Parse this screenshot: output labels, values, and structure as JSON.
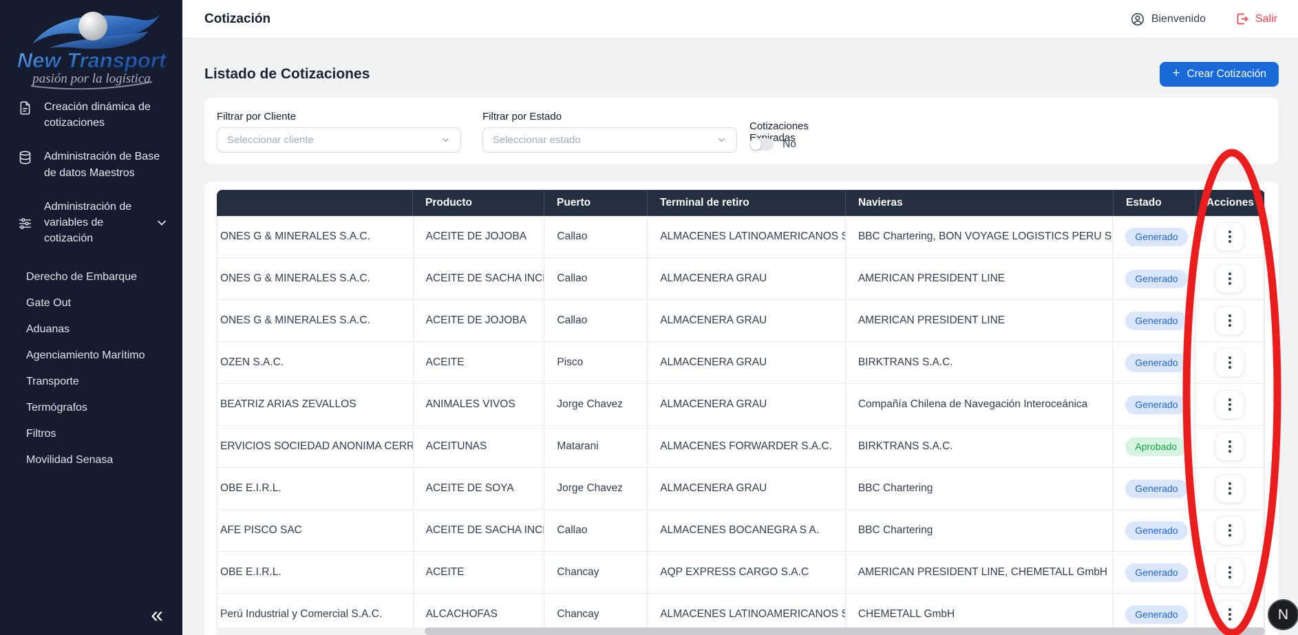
{
  "sidebar": {
    "logo": {
      "title": "New Transport",
      "tagline": "pasión por la logística"
    },
    "items": [
      {
        "icon": "document-icon",
        "label": "Creación dinámica de cotizaciones"
      },
      {
        "icon": "database-icon",
        "label": "Administración de Base de datos Maestros"
      },
      {
        "icon": "sliders-icon",
        "label": "Administración de variables de cotización",
        "chevron": "chevron-down-icon"
      }
    ],
    "subitems": [
      "Derecho de Embarque",
      "Gate Out",
      "Aduanas",
      "Agenciamiento Marítimo",
      "Transporte",
      "Termógrafos",
      "Filtros",
      "Movilidad Senasa"
    ],
    "collapse_glyph": "«"
  },
  "topbar": {
    "title": "Cotización",
    "welcome_label": "Bienvenido",
    "welcome_icon": "user-icon",
    "logout_label": "Salir",
    "logout_icon": "logout-icon"
  },
  "page": {
    "heading": "Listado de Cotizaciones",
    "create_button_label": "Crear Cotización",
    "create_button_icon": "plus-icon"
  },
  "filters": {
    "client_label": "Filtrar por Cliente",
    "client_placeholder": "Seleccionar cliente",
    "state_label": "Filtrar por Estado",
    "state_placeholder": "Seleccionar estado",
    "expired_label": "Cotizaciones Expiradas",
    "expired_value": "No",
    "expired_state": "off"
  },
  "table": {
    "headers": [
      "",
      "Producto",
      "Puerto",
      "Terminal de retiro",
      "Navieras",
      "Estado",
      "Acciones"
    ],
    "rows": [
      {
        "cliente": "ONES G & MINERALES S.A.C.",
        "producto": "ACEITE DE JOJOBA",
        "puerto": "Callao",
        "terminal": "ALMACENES LATINOAMERICANOS S.A.",
        "navieras": "BBC Chartering, BON VOYAGE LOGISTICS PERU S.A.C.",
        "estado": "Generado"
      },
      {
        "cliente": "ONES G & MINERALES S.A.C.",
        "producto": "ACEITE DE SACHA INCH",
        "puerto": "Callao",
        "terminal": "ALMACENERA GRAU",
        "navieras": "AMERICAN PRESIDENT LINE",
        "estado": "Generado"
      },
      {
        "cliente": "ONES G & MINERALES S.A.C.",
        "producto": "ACEITE DE JOJOBA",
        "puerto": "Callao",
        "terminal": "ALMACENERA GRAU",
        "navieras": "AMERICAN PRESIDENT LINE",
        "estado": "Generado"
      },
      {
        "cliente": "OZEN S.A.C.",
        "producto": "ACEITE",
        "puerto": "Pisco",
        "terminal": "ALMACENERA GRAU",
        "navieras": "BIRKTRANS S.A.C.",
        "estado": "Generado"
      },
      {
        "cliente": "BEATRIZ ARIAS ZEVALLOS",
        "producto": "ANIMALES VIVOS",
        "puerto": "Jorge Chavez",
        "terminal": "ALMACENERA GRAU",
        "navieras": "Compañía Chilena de Navegación Interoceánica",
        "estado": "Generado"
      },
      {
        "cliente": "ERVICIOS SOCIEDAD ANONIMA CERRADA",
        "producto": "ACEITUNAS",
        "puerto": "Matarani",
        "terminal": "ALMACENES FORWARDER S.A.C.",
        "navieras": "BIRKTRANS S.A.C.",
        "estado": "Aprobado"
      },
      {
        "cliente": "OBE E.I.R.L.",
        "producto": "ACEITE DE SOYA",
        "puerto": "Jorge Chavez",
        "terminal": "ALMACENERA GRAU",
        "navieras": "BBC Chartering",
        "estado": "Generado"
      },
      {
        "cliente": "AFE PISCO SAC",
        "producto": "ACEITE DE SACHA INCH",
        "puerto": "Callao",
        "terminal": "ALMACENES BOCANEGRA S A.",
        "navieras": "BBC Chartering",
        "estado": "Generado"
      },
      {
        "cliente": "OBE E.I.R.L.",
        "producto": "ACEITE",
        "puerto": "Chancay",
        "terminal": "AQP EXPRESS CARGO S.A.C",
        "navieras": "AMERICAN PRESIDENT LINE, CHEMETALL GmbH",
        "estado": "Generado"
      },
      {
        "cliente": "Perú Industrial y Comercial S.A.C.",
        "producto": "ALCACHOFAS",
        "puerto": "Chancay",
        "terminal": "ALMACENES LATINOAMERICANOS S.A.",
        "navieras": "CHEMETALL GmbH",
        "estado": "Generado"
      }
    ],
    "row_action_icon": "kebab-icon"
  },
  "status_colors": {
    "Generado": {
      "bg": "#D9E6FB",
      "text": "#2166DF"
    },
    "Aprobado": {
      "bg": "#D6F4E0",
      "text": "#15A24E"
    }
  },
  "colors": {
    "sidebar_bg": "#151C2F",
    "table_header_bg": "#242F41",
    "accent_blue": "#1A69D8",
    "logout_red": "#F23F4F",
    "annotation_red": "#EB1D1D",
    "page_bg": "#F1F2F4"
  },
  "annotation": {
    "shape": "ellipse",
    "target": "Acciones column"
  },
  "dev_badge": "N"
}
